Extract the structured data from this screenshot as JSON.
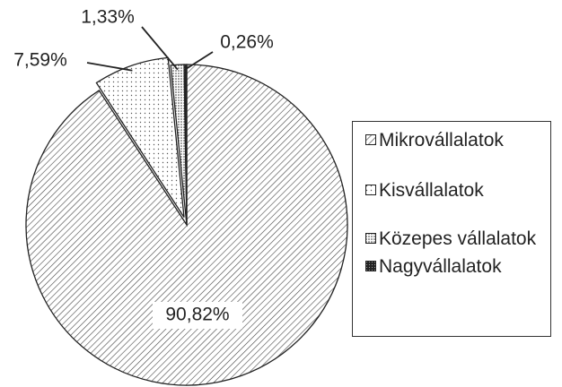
{
  "chart_data": {
    "type": "pie",
    "categories": [
      "Mikrovállalatok",
      "Kisvállalatok",
      "Közepes vállalatok",
      "Nagyvállalatok"
    ],
    "values": [
      90.82,
      7.59,
      1.33,
      0.26
    ],
    "value_labels": [
      "90,82%",
      "7,59%",
      "1,33%",
      "0,26%"
    ]
  }
}
